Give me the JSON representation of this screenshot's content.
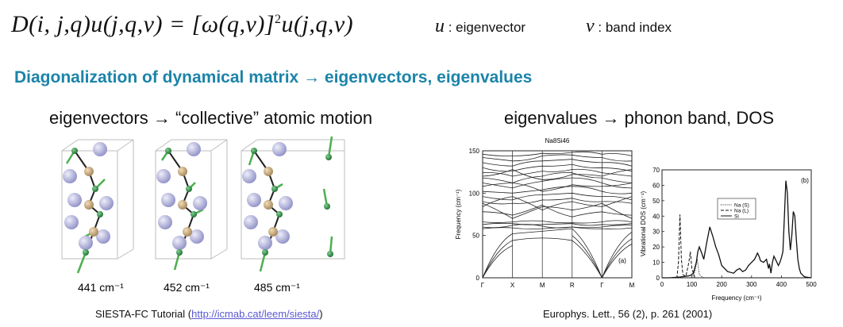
{
  "equation": {
    "lhs": "D(i, j,q)u(j,q,ν) = [ω(q,ν)]",
    "sup": "2",
    "rhs": "u(j,q,ν)"
  },
  "definitions": [
    {
      "symbol": "u",
      "text": ": eigenvector"
    },
    {
      "symbol": "ν",
      "text": ": band index"
    }
  ],
  "heading": "Diagonalization of dynamical matrix → eigenvectors, eigenvalues",
  "left_panel": {
    "title": "eigenvectors → “collective” atomic motion",
    "frequency_labels": [
      "441 cm⁻¹",
      "452 cm⁻¹",
      "485 cm⁻¹"
    ],
    "citation_prefix": "SIESTA-FC Tutorial (",
    "citation_link": "http://icmab.cat/leem/siesta/",
    "citation_suffix": ")"
  },
  "right_panel": {
    "title": "eigenvalues → phonon band, DOS",
    "citation": "Europhys. Lett., 56 (2), p. 261 (2001)"
  },
  "chart_data": [
    {
      "type": "line",
      "title": "Na8Si46",
      "panel_label": "(a)",
      "xlabel": "",
      "ylabel": "Frequency (cm⁻¹)",
      "x_ticks": [
        "Γ",
        "X",
        "M",
        "R",
        "Γ",
        "M"
      ],
      "ylim": [
        0,
        150
      ],
      "y_ticks": [
        0,
        50,
        100,
        150
      ],
      "grid": false
    },
    {
      "type": "line",
      "title": "",
      "panel_label": "(b)",
      "xlabel": "Frequency (cm⁻¹)",
      "ylabel": "Vibrational DOS (cm⁻¹)",
      "xlim": [
        0,
        500
      ],
      "x_ticks": [
        0,
        100,
        200,
        300,
        400,
        500
      ],
      "ylim": [
        0,
        70
      ],
      "y_ticks": [
        0,
        10,
        20,
        30,
        40,
        50,
        60,
        70
      ],
      "legend_placement": "top-left",
      "series": [
        {
          "name": "Na (S)",
          "style": "dotted",
          "x": [
            0,
            100,
            110,
            118,
            125,
            132,
            140,
            500
          ],
          "y": [
            0,
            0,
            4,
            12,
            2,
            1,
            0,
            0
          ]
        },
        {
          "name": "Na (L)",
          "style": "dashed",
          "x": [
            0,
            50,
            55,
            60,
            65,
            70,
            80,
            90,
            95,
            100,
            110,
            500
          ],
          "y": [
            0,
            0,
            10,
            41,
            12,
            2,
            1,
            10,
            17,
            6,
            0,
            0
          ]
        },
        {
          "name": "Si",
          "style": "solid",
          "x": [
            0,
            25,
            60,
            80,
            95,
            105,
            115,
            120,
            125,
            133,
            140,
            150,
            160,
            170,
            180,
            190,
            200,
            220,
            240,
            250,
            260,
            270,
            280,
            290,
            300,
            310,
            320,
            325,
            330,
            340,
            350,
            357,
            360,
            365,
            370,
            375,
            380,
            390,
            395,
            400,
            405,
            410,
            415,
            420,
            425,
            430,
            435,
            440,
            445,
            450,
            455,
            460,
            465,
            470,
            475,
            480,
            500
          ],
          "y": [
            0,
            0,
            0.5,
            1,
            1.5,
            3,
            10,
            17,
            20,
            16,
            12,
            23,
            33,
            27,
            20,
            15,
            8,
            4,
            3,
            5,
            6,
            4,
            5,
            8,
            10,
            12,
            16,
            14,
            11,
            10,
            12,
            6,
            9,
            3,
            10,
            14,
            12,
            8,
            10,
            13,
            17,
            40,
            63,
            55,
            30,
            18,
            28,
            43,
            40,
            25,
            12,
            6,
            3,
            2,
            1,
            0.5,
            0
          ]
        }
      ]
    }
  ]
}
